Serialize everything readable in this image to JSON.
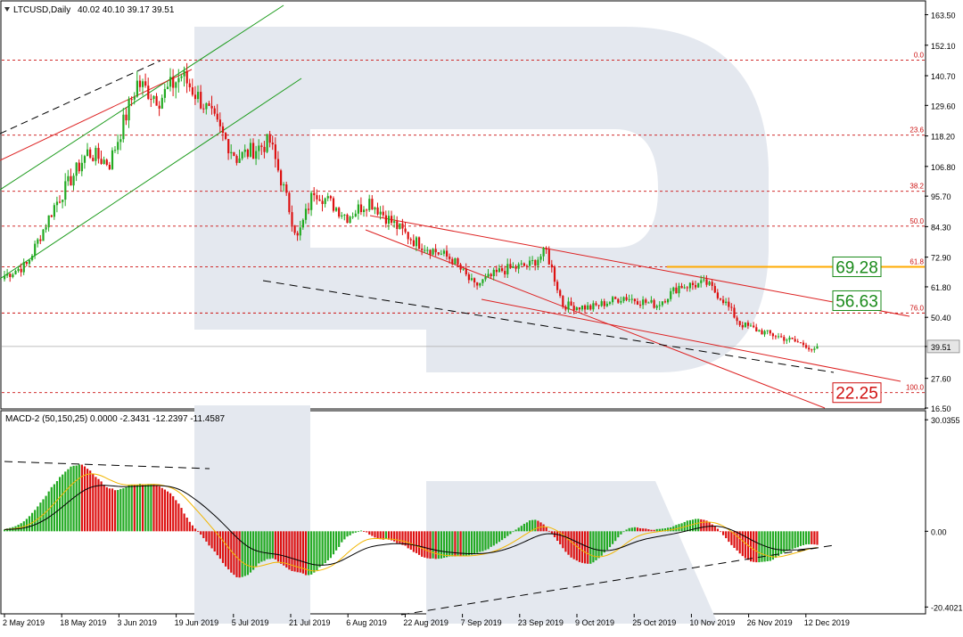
{
  "header": {
    "symbol": "LTCUSD,Daily",
    "ohlc": "40.02 40.10 39.17 39.51"
  },
  "macd_header": "MACD-2 (50,150,25) 0.0000 -2.3431 -12.2397 -11.4587",
  "colors": {
    "bull": "#22aa22",
    "bear": "#dd1111",
    "channel_green": "#1a9a1a",
    "channel_red": "#dd2222",
    "fib": "#cc1111",
    "highlight": "#ffaa00",
    "watermark": "#e3e7ee",
    "macd_signal": "#f2b600",
    "macd_main": "#000000"
  },
  "chart_data": [
    {
      "type": "candlestick",
      "title": "LTCUSD,Daily",
      "ylim": [
        16.5,
        168
      ],
      "yticks": [
        "163.50",
        "152.10",
        "140.70",
        "129.60",
        "118.20",
        "106.80",
        "95.70",
        "84.30",
        "72.90",
        "61.80",
        "50.40",
        "39.51",
        "27.60",
        "16.50"
      ],
      "xticks": [
        "2 May 2019",
        "18 May 2019",
        "3 Jun 2019",
        "19 Jun 2019",
        "5 Jul 2019",
        "21 Jul 2019",
        "6 Aug 2019",
        "22 Aug 2019",
        "7 Sep 2019",
        "23 Sep 2019",
        "9 Oct 2019",
        "25 Oct 2019",
        "10 Nov 2019",
        "26 Nov 2019",
        "12 Dec 2019"
      ],
      "last_price": "39.51",
      "fibonacci_levels": [
        {
          "label": "0.0",
          "price": 146.5
        },
        {
          "label": "23.6",
          "price": 118.5
        },
        {
          "label": "38.2",
          "price": 97.5
        },
        {
          "label": "50.0",
          "price": 84.5
        },
        {
          "label": "61.8",
          "price": 69.28
        },
        {
          "label": "76.0",
          "price": 52.0
        },
        {
          "label": "100.0",
          "price": 22.25
        }
      ],
      "target_labels": [
        {
          "text": "69.28",
          "price": 69.28,
          "color": "green"
        },
        {
          "text": "56.63",
          "price": 56.63,
          "color": "green"
        },
        {
          "text": "22.25",
          "price": 22.25,
          "color": "red"
        }
      ],
      "close_anchors": [
        [
          0,
          66
        ],
        [
          8,
          70
        ],
        [
          18,
          92
        ],
        [
          30,
          112
        ],
        [
          38,
          108
        ],
        [
          48,
          138
        ],
        [
          56,
          132
        ],
        [
          64,
          141
        ],
        [
          72,
          130
        ],
        [
          84,
          110
        ],
        [
          96,
          116
        ],
        [
          100,
          102
        ],
        [
          106,
          80
        ],
        [
          112,
          98
        ],
        [
          124,
          88
        ],
        [
          132,
          94
        ],
        [
          140,
          86
        ],
        [
          148,
          79
        ],
        [
          162,
          72
        ],
        [
          170,
          62
        ],
        [
          180,
          68
        ],
        [
          190,
          70
        ],
        [
          196,
          75
        ],
        [
          202,
          55
        ],
        [
          212,
          54
        ],
        [
          224,
          58
        ],
        [
          236,
          55
        ],
        [
          244,
          62
        ],
        [
          254,
          63
        ],
        [
          260,
          57
        ],
        [
          266,
          48
        ],
        [
          274,
          45
        ],
        [
          284,
          42
        ],
        [
          290,
          40
        ],
        [
          294,
          37
        ]
      ]
    },
    {
      "type": "macd",
      "title": "MACD-2 (50,150,25)",
      "values": [
        0.0,
        -2.3431,
        -12.2397,
        -11.4587
      ],
      "ylim": [
        -22,
        32
      ],
      "yticks": [
        "30.0355",
        "0.00",
        "-20.4021"
      ]
    }
  ]
}
